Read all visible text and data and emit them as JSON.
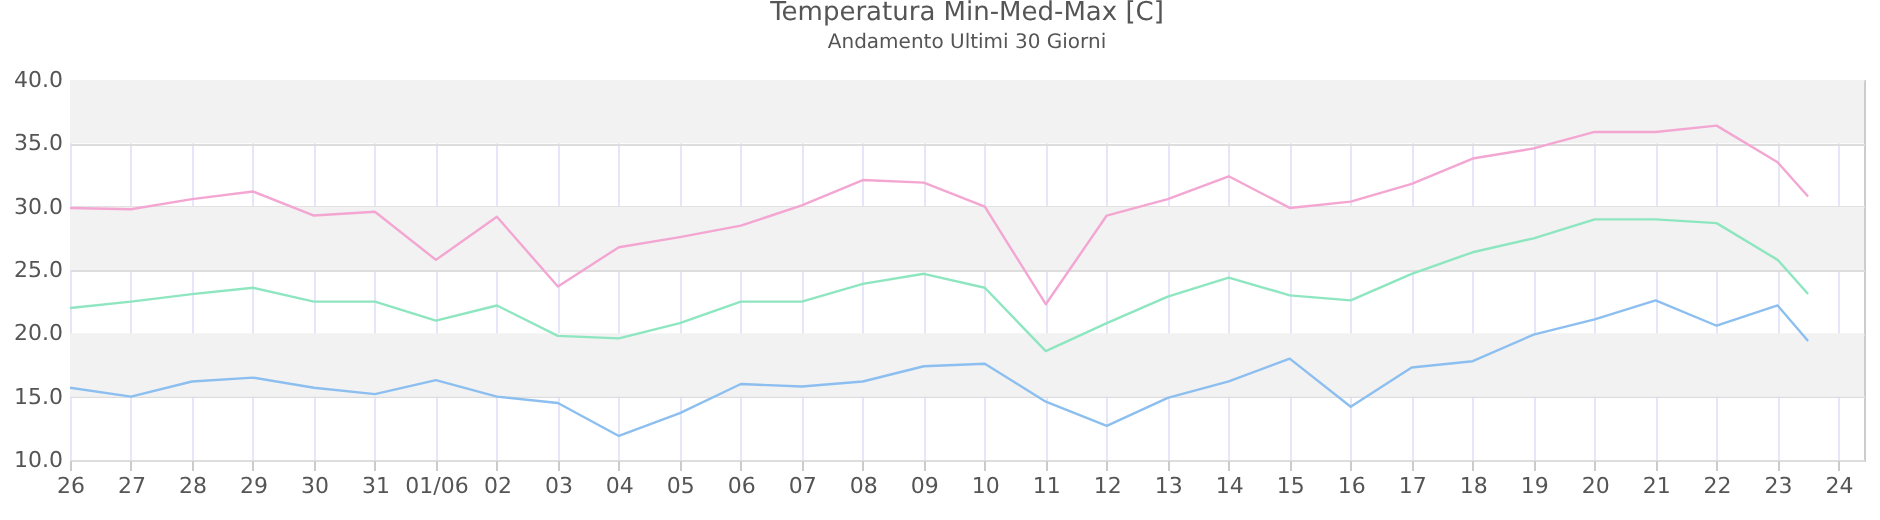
{
  "chart_data": {
    "type": "line",
    "title": "Temperatura Min-Med-Max [C]",
    "subtitle": "Andamento Ultimi 30 Giorni",
    "x": [
      "--05-26",
      "--05-27",
      "--05-28",
      "--05-29",
      "--05-30",
      "--05-31",
      "--06-01",
      "--06-02",
      "--06-03",
      "--06-04",
      "--06-05",
      "--06-06",
      "--06-07",
      "--06-08",
      "--06-09",
      "--06-10",
      "--06-11",
      "--06-12",
      "--06-13",
      "--06-14",
      "--06-15",
      "--06-16",
      "--06-17",
      "--06-18",
      "--06-19",
      "--06-20",
      "--06-21",
      "--06-22",
      "--06-23",
      "--06-23T12:00"
    ],
    "series": [
      {
        "color": "#f4a6d2",
        "values": [
          29.9,
          29.8,
          30.6,
          31.2,
          29.3,
          29.6,
          25.8,
          29.2,
          23.7,
          26.8,
          27.6,
          28.5,
          30.1,
          32.1,
          31.9,
          30.0,
          22.3,
          29.3,
          30.6,
          32.4,
          29.9,
          30.4,
          31.8,
          33.8,
          34.6,
          35.9,
          35.9,
          36.4,
          33.5,
          30.8
        ]
      },
      {
        "color": "#8ee6c0",
        "values": [
          22.0,
          22.5,
          23.1,
          23.6,
          22.5,
          22.5,
          21.0,
          22.2,
          19.8,
          19.6,
          20.8,
          22.5,
          22.5,
          23.9,
          24.7,
          23.6,
          18.6,
          20.8,
          22.9,
          24.4,
          23.0,
          22.6,
          24.7,
          26.4,
          27.5,
          29.0,
          29.0,
          28.7,
          25.8,
          23.1
        ]
      },
      {
        "color": "#8cbff0",
        "values": [
          15.7,
          15.0,
          16.2,
          16.5,
          15.7,
          15.2,
          16.3,
          15.0,
          14.5,
          11.9,
          13.7,
          16.0,
          15.8,
          16.2,
          17.4,
          17.6,
          14.6,
          12.7,
          14.9,
          16.2,
          18.0,
          14.2,
          17.3,
          17.8,
          19.9,
          21.1,
          22.6,
          20.6,
          22.2,
          19.4
        ]
      }
    ],
    "xlim": [
      "--05-26",
      "--06-24T10:00"
    ],
    "xticks": [
      {
        "value": "--05-26",
        "label": "26"
      },
      {
        "value": "--05-27",
        "label": "27"
      },
      {
        "value": "--05-28",
        "label": "28"
      },
      {
        "value": "--05-29",
        "label": "29"
      },
      {
        "value": "--05-30",
        "label": "30"
      },
      {
        "value": "--05-31",
        "label": "31"
      },
      {
        "value": "--06-01",
        "label": "01/06"
      },
      {
        "value": "--06-02",
        "label": "02"
      },
      {
        "value": "--06-03",
        "label": "03"
      },
      {
        "value": "--06-04",
        "label": "04"
      },
      {
        "value": "--06-05",
        "label": "05"
      },
      {
        "value": "--06-06",
        "label": "06"
      },
      {
        "value": "--06-07",
        "label": "07"
      },
      {
        "value": "--06-08",
        "label": "08"
      },
      {
        "value": "--06-09",
        "label": "09"
      },
      {
        "value": "--06-10",
        "label": "10"
      },
      {
        "value": "--06-11",
        "label": "11"
      },
      {
        "value": "--06-12",
        "label": "12"
      },
      {
        "value": "--06-13",
        "label": "13"
      },
      {
        "value": "--06-14",
        "label": "14"
      },
      {
        "value": "--06-15",
        "label": "15"
      },
      {
        "value": "--06-16",
        "label": "16"
      },
      {
        "value": "--06-17",
        "label": "17"
      },
      {
        "value": "--06-18",
        "label": "18"
      },
      {
        "value": "--06-19",
        "label": "19"
      },
      {
        "value": "--06-20",
        "label": "20"
      },
      {
        "value": "--06-21",
        "label": "21"
      },
      {
        "value": "--06-22",
        "label": "22"
      },
      {
        "value": "--06-23",
        "label": "23"
      },
      {
        "value": "--06-24",
        "label": "24"
      }
    ],
    "ylim": [
      10,
      40
    ],
    "yticks": [
      {
        "value": 10,
        "label": "10.0"
      },
      {
        "value": 15,
        "label": "15.0"
      },
      {
        "value": 20,
        "label": "20.0"
      },
      {
        "value": 25,
        "label": "25.0"
      },
      {
        "value": 30,
        "label": "30.0"
      },
      {
        "value": 35,
        "label": "35.0"
      },
      {
        "value": 40,
        "label": "40.0"
      }
    ],
    "bands": [
      {
        "axis": "y",
        "from": 15,
        "to": 20,
        "color": "#f2f2f2"
      },
      {
        "axis": "y",
        "from": 25,
        "to": 30,
        "color": "#f2f2f2"
      },
      {
        "axis": "y",
        "from": 35,
        "to": 40,
        "color": "#f2f2f2"
      }
    ],
    "grid": true,
    "line_style": "solid",
    "marker": "none"
  }
}
